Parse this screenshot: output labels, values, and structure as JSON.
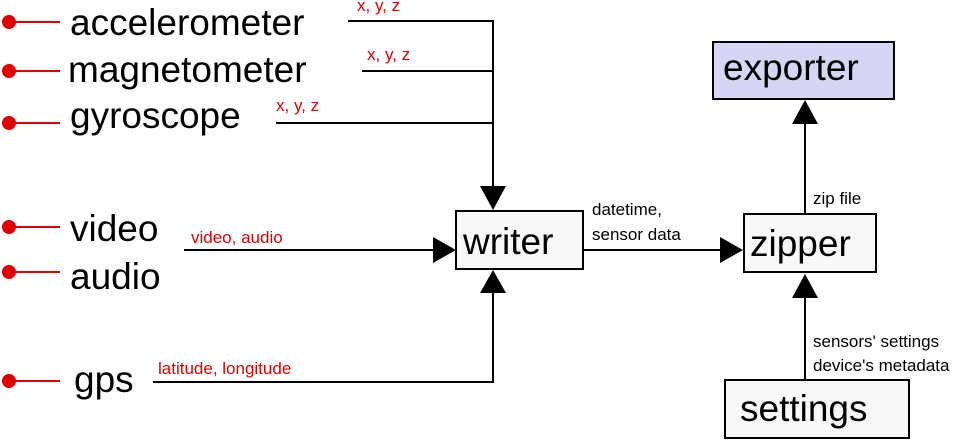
{
  "sources": {
    "accelerometer": "accelerometer",
    "magnetometer": "magnetometer",
    "gyroscope": "gyroscope",
    "video": "video",
    "audio": "audio",
    "gps": "gps"
  },
  "edges": {
    "accel_xyz": "x, y, z",
    "magnet_xyz": "x, y, z",
    "gyro_xyz": "x, y, z",
    "video_audio": "video, audio",
    "gps_latlon": "latitude, longitude",
    "writer_to_zipper_1": "datetime,",
    "writer_to_zipper_2": "sensor data",
    "zipper_to_exporter": "zip file",
    "settings_to_zipper_1": "sensors' settings",
    "settings_to_zipper_2": "device's metadata"
  },
  "boxes": {
    "writer": "writer",
    "zipper": "zipper",
    "exporter": "exporter",
    "settings": "settings"
  },
  "colors": {
    "source_marker": "#e00000",
    "edge_label": "#e00000",
    "exporter_fill": "#d6d6f4",
    "box_fill": "#f8f8f8"
  }
}
